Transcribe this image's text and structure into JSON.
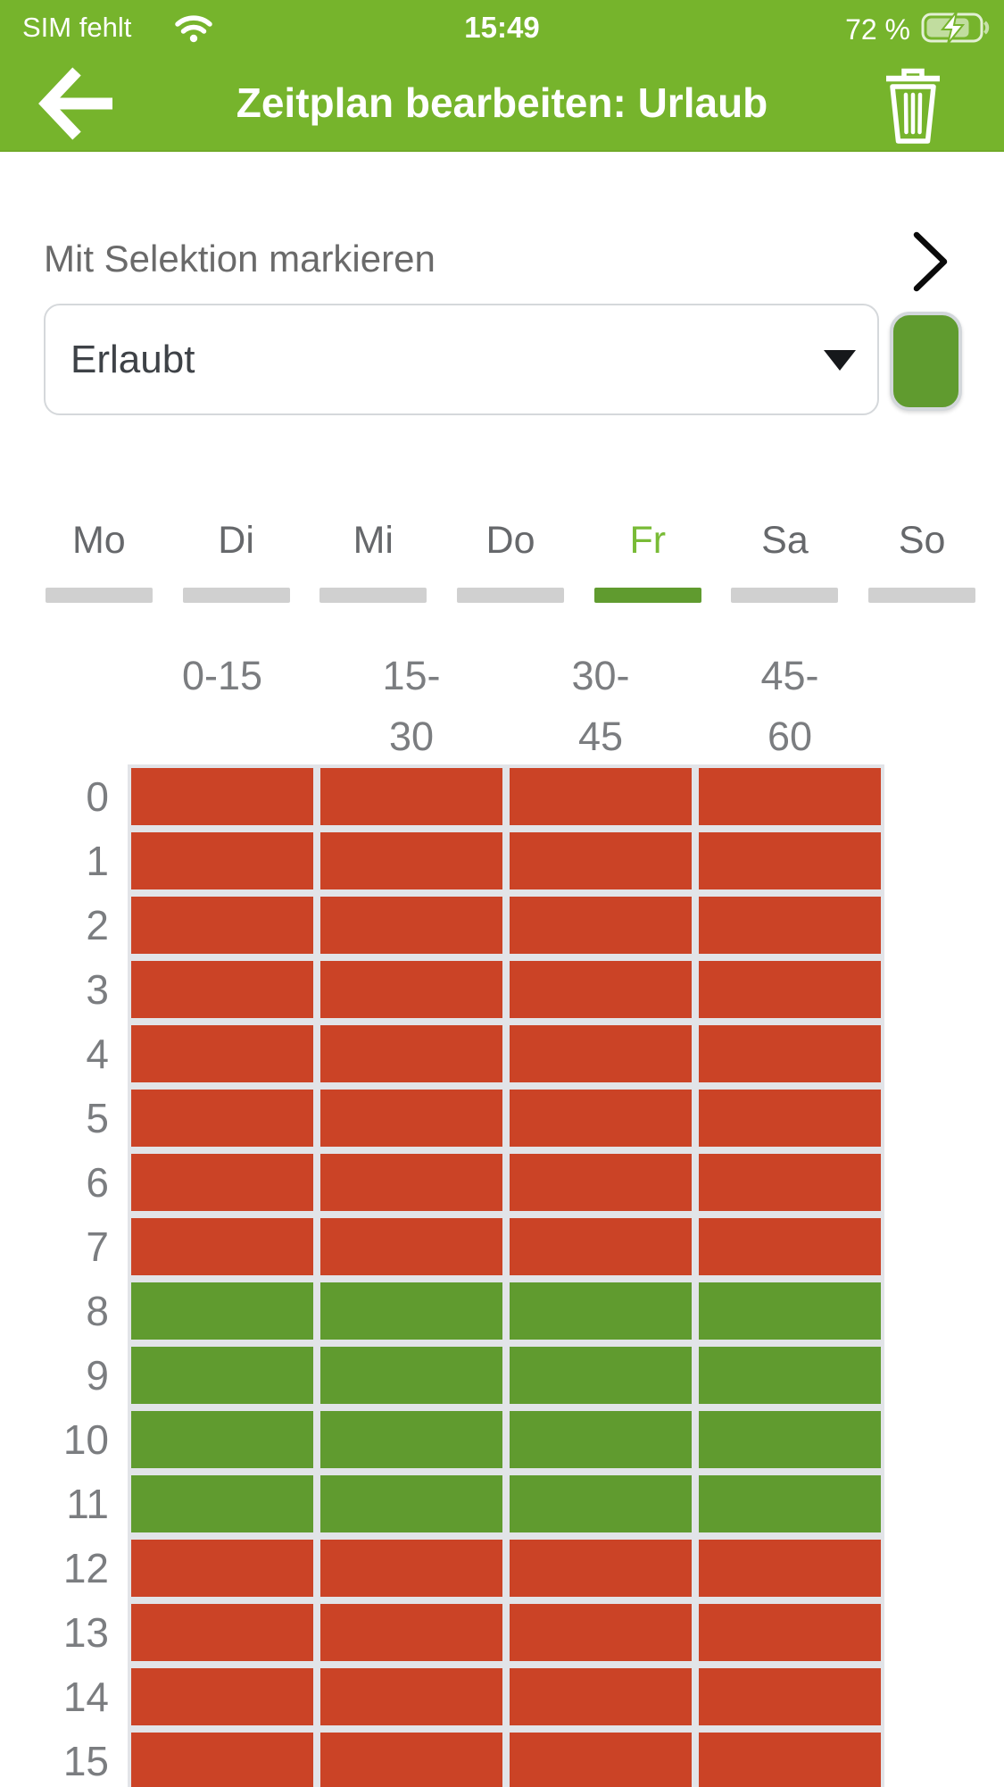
{
  "colors": {
    "header_green": "#76b42c",
    "accent_green_light": "#79bb36",
    "allowed_green": "#609b2f",
    "blocked_red": "#cb4326",
    "grid_gap": "#e2e4e8",
    "inactive_bar": "#d0d0d0"
  },
  "status_bar": {
    "carrier": "SIM fehlt",
    "wifi_icon": "wifi-icon",
    "time": "15:49",
    "battery_percent": "72 %",
    "battery_icon": "battery-charging-icon",
    "battery_level": 72
  },
  "nav": {
    "back_icon": "arrow-left-icon",
    "title": "Zeitplan bearbeiten: Urlaub",
    "delete_icon": "trash-icon"
  },
  "selection": {
    "label": "Mit Selektion markieren",
    "chevron_icon": "chevron-right-icon"
  },
  "marker": {
    "value": "Erlaubt",
    "caret_icon": "caret-down-icon",
    "swatch_color": "#609b2f"
  },
  "day_tabs": {
    "days": [
      {
        "label": "Mo",
        "active": false
      },
      {
        "label": "Di",
        "active": false
      },
      {
        "label": "Mi",
        "active": false
      },
      {
        "label": "Do",
        "active": false
      },
      {
        "label": "Fr",
        "active": true
      },
      {
        "label": "Sa",
        "active": false
      },
      {
        "label": "So",
        "active": false
      }
    ]
  },
  "schedule_grid": {
    "column_headers": [
      {
        "line1": "0-15",
        "line2": ""
      },
      {
        "line1": "15-",
        "line2": "30"
      },
      {
        "line1": "30-",
        "line2": "45"
      },
      {
        "line1": "45-",
        "line2": "60"
      }
    ],
    "rows": [
      {
        "hour": "0",
        "cells": [
          "blocked",
          "blocked",
          "blocked",
          "blocked"
        ]
      },
      {
        "hour": "1",
        "cells": [
          "blocked",
          "blocked",
          "blocked",
          "blocked"
        ]
      },
      {
        "hour": "2",
        "cells": [
          "blocked",
          "blocked",
          "blocked",
          "blocked"
        ]
      },
      {
        "hour": "3",
        "cells": [
          "blocked",
          "blocked",
          "blocked",
          "blocked"
        ]
      },
      {
        "hour": "4",
        "cells": [
          "blocked",
          "blocked",
          "blocked",
          "blocked"
        ]
      },
      {
        "hour": "5",
        "cells": [
          "blocked",
          "blocked",
          "blocked",
          "blocked"
        ]
      },
      {
        "hour": "6",
        "cells": [
          "blocked",
          "blocked",
          "blocked",
          "blocked"
        ]
      },
      {
        "hour": "7",
        "cells": [
          "blocked",
          "blocked",
          "blocked",
          "blocked"
        ]
      },
      {
        "hour": "8",
        "cells": [
          "allowed",
          "allowed",
          "allowed",
          "allowed"
        ]
      },
      {
        "hour": "9",
        "cells": [
          "allowed",
          "allowed",
          "allowed",
          "allowed"
        ]
      },
      {
        "hour": "10",
        "cells": [
          "allowed",
          "allowed",
          "allowed",
          "allowed"
        ]
      },
      {
        "hour": "11",
        "cells": [
          "allowed",
          "allowed",
          "allowed",
          "allowed"
        ]
      },
      {
        "hour": "12",
        "cells": [
          "blocked",
          "blocked",
          "blocked",
          "blocked"
        ]
      },
      {
        "hour": "13",
        "cells": [
          "blocked",
          "blocked",
          "blocked",
          "blocked"
        ]
      },
      {
        "hour": "14",
        "cells": [
          "blocked",
          "blocked",
          "blocked",
          "blocked"
        ]
      },
      {
        "hour": "15",
        "cells": [
          "blocked",
          "blocked",
          "blocked",
          "blocked"
        ]
      }
    ]
  }
}
